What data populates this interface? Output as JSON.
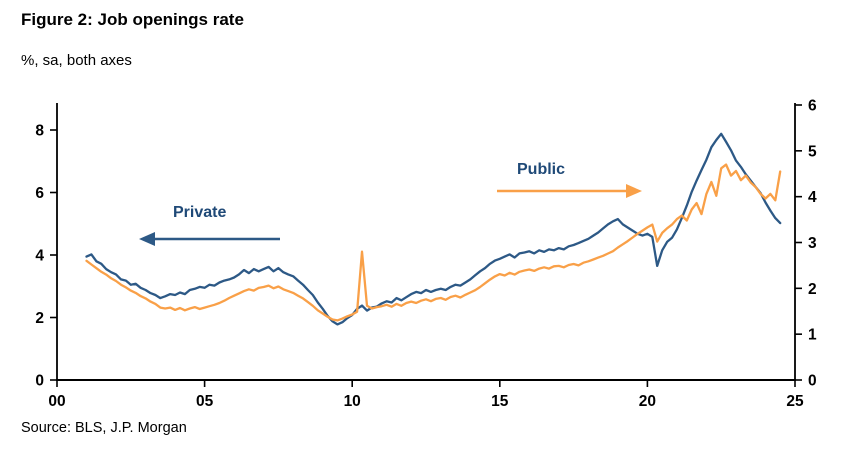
{
  "title": "Figure 2: Job openings rate",
  "subtitle": "%, sa, both axes",
  "source": "Source: BLS, J.P. Morgan",
  "annotations": {
    "private": "Private",
    "public": "Public"
  },
  "colors": {
    "private": "#2d5986",
    "public": "#f9a048",
    "axis": "#000000"
  },
  "chart_data": {
    "type": "line",
    "title": "Figure 2: Job openings rate",
    "subtitle": "%, sa, both axes",
    "x_start": 2001.0,
    "x_step": 0.1666667,
    "x_axis": {
      "range": [
        2000,
        2025
      ],
      "ticks": [
        2000,
        2005,
        2010,
        2015,
        2020,
        2025
      ],
      "tick_labels": [
        "00",
        "05",
        "10",
        "15",
        "20",
        "25"
      ]
    },
    "left_axis": {
      "range": [
        0,
        8
      ],
      "ticks": [
        0,
        2,
        4,
        6,
        8
      ],
      "series": "Private"
    },
    "right_axis": {
      "range": [
        0,
        6
      ],
      "ticks": [
        0,
        1,
        2,
        3,
        4,
        5,
        6
      ],
      "series": "Public"
    },
    "legend": "annotations-with-arrows",
    "grid": false,
    "series": [
      {
        "name": "Private",
        "axis": "left",
        "color": "#2d5986",
        "values": [
          3.95,
          4.02,
          3.8,
          3.72,
          3.55,
          3.45,
          3.38,
          3.22,
          3.18,
          3.05,
          3.08,
          2.95,
          2.88,
          2.78,
          2.72,
          2.62,
          2.68,
          2.75,
          2.72,
          2.8,
          2.75,
          2.88,
          2.92,
          2.98,
          2.95,
          3.05,
          3.02,
          3.12,
          3.18,
          3.22,
          3.28,
          3.38,
          3.52,
          3.42,
          3.55,
          3.48,
          3.55,
          3.62,
          3.48,
          3.58,
          3.45,
          3.38,
          3.32,
          3.18,
          3.05,
          2.88,
          2.72,
          2.48,
          2.28,
          2.05,
          1.88,
          1.78,
          1.85,
          1.98,
          2.08,
          2.28,
          2.38,
          2.22,
          2.32,
          2.35,
          2.45,
          2.52,
          2.48,
          2.62,
          2.55,
          2.65,
          2.75,
          2.82,
          2.78,
          2.88,
          2.82,
          2.88,
          2.92,
          2.88,
          2.98,
          3.05,
          3.02,
          3.12,
          3.22,
          3.35,
          3.48,
          3.58,
          3.72,
          3.82,
          3.88,
          3.95,
          4.02,
          3.92,
          4.05,
          4.08,
          4.12,
          4.05,
          4.15,
          4.1,
          4.18,
          4.15,
          4.22,
          4.18,
          4.28,
          4.32,
          4.38,
          4.45,
          4.52,
          4.62,
          4.72,
          4.85,
          4.98,
          5.08,
          5.15,
          4.98,
          4.88,
          4.78,
          4.68,
          4.62,
          4.68,
          4.58,
          3.65,
          4.15,
          4.42,
          4.55,
          4.82,
          5.18,
          5.58,
          6.02,
          6.38,
          6.72,
          7.05,
          7.45,
          7.68,
          7.88,
          7.62,
          7.35,
          7.02,
          6.82,
          6.58,
          6.38,
          6.18,
          5.98,
          5.68,
          5.42,
          5.18,
          5.02
        ]
      },
      {
        "name": "Public",
        "axis": "right",
        "color": "#f9a048",
        "values": [
          2.6,
          2.52,
          2.44,
          2.36,
          2.3,
          2.22,
          2.16,
          2.08,
          2.02,
          1.95,
          1.9,
          1.83,
          1.78,
          1.71,
          1.66,
          1.58,
          1.56,
          1.58,
          1.53,
          1.57,
          1.52,
          1.56,
          1.59,
          1.55,
          1.58,
          1.61,
          1.64,
          1.68,
          1.73,
          1.79,
          1.84,
          1.89,
          1.94,
          1.98,
          1.95,
          2.01,
          2.03,
          2.06,
          2.0,
          2.04,
          1.98,
          1.94,
          1.9,
          1.84,
          1.78,
          1.7,
          1.62,
          1.52,
          1.45,
          1.38,
          1.32,
          1.3,
          1.34,
          1.39,
          1.43,
          1.49,
          2.8,
          1.62,
          1.56,
          1.59,
          1.61,
          1.64,
          1.6,
          1.66,
          1.62,
          1.68,
          1.71,
          1.68,
          1.73,
          1.76,
          1.72,
          1.77,
          1.79,
          1.75,
          1.81,
          1.84,
          1.8,
          1.86,
          1.91,
          1.96,
          2.03,
          2.11,
          2.19,
          2.26,
          2.31,
          2.28,
          2.34,
          2.3,
          2.36,
          2.39,
          2.41,
          2.38,
          2.43,
          2.46,
          2.43,
          2.48,
          2.49,
          2.46,
          2.51,
          2.53,
          2.5,
          2.56,
          2.59,
          2.63,
          2.67,
          2.71,
          2.76,
          2.81,
          2.89,
          2.96,
          3.03,
          3.11,
          3.19,
          3.26,
          3.33,
          3.39,
          3.02,
          3.21,
          3.31,
          3.39,
          3.51,
          3.59,
          3.48,
          3.72,
          3.86,
          3.62,
          4.06,
          4.32,
          4.02,
          4.62,
          4.7,
          4.46,
          4.56,
          4.36,
          4.46,
          4.31,
          4.21,
          4.06,
          3.96,
          4.06,
          3.92,
          4.55
        ]
      }
    ]
  }
}
